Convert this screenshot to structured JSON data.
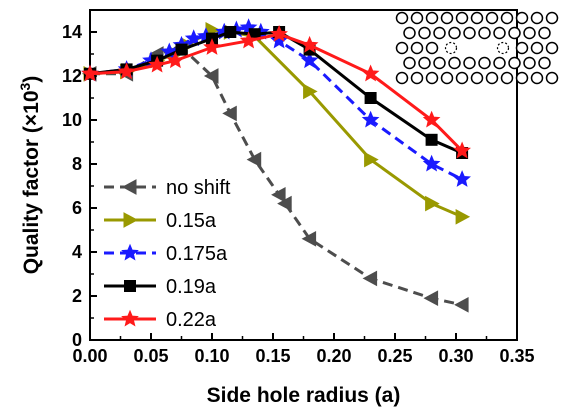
{
  "chart_data": {
    "type": "line",
    "title": "",
    "xlabel": "Side hole radius (a)",
    "ylabel": "Quality factor (×10",
    "ylabel_sup": "3",
    "ylabel_close": ")",
    "xlim": [
      0.0,
      0.35
    ],
    "ylim": [
      0,
      15
    ],
    "x_ticks": [
      0.0,
      0.05,
      0.1,
      0.15,
      0.2,
      0.25,
      0.3,
      0.35
    ],
    "x_tick_labels": [
      "0.00",
      "0.05",
      "0.10",
      "0.15",
      "0.20",
      "0.25",
      "0.30",
      "0.35"
    ],
    "y_ticks": [
      0,
      2,
      4,
      6,
      8,
      10,
      12,
      14
    ],
    "y_tick_labels": [
      "0",
      "2",
      "4",
      "6",
      "8",
      "10",
      "12",
      "14"
    ],
    "legend_position": "lower-left",
    "inset": "photonic crystal hole array with shifted side holes (dotted)",
    "series": [
      {
        "name": "no shift",
        "color": "#4d4d4d",
        "dash": "10,6",
        "marker": "triangle-left",
        "x": [
          0.0,
          0.03,
          0.055,
          0.075,
          0.1,
          0.115,
          0.135,
          0.155,
          0.16,
          0.18,
          0.23,
          0.28,
          0.305
        ],
        "y": [
          12.1,
          12.1,
          13.0,
          13.3,
          12.0,
          10.3,
          8.2,
          6.6,
          6.2,
          4.6,
          2.8,
          1.9,
          1.6
        ]
      },
      {
        "name": "0.15a",
        "color": "#999900",
        "dash": "",
        "marker": "triangle-right",
        "x": [
          0.0,
          0.03,
          0.055,
          0.07,
          0.08,
          0.1,
          0.115,
          0.135,
          0.18,
          0.23,
          0.28,
          0.305
        ],
        "y": [
          12.1,
          12.2,
          12.7,
          13.0,
          13.4,
          14.1,
          14.0,
          13.8,
          11.3,
          8.2,
          6.2,
          5.6
        ]
      },
      {
        "name": "0.175a",
        "color": "#1a1aff",
        "dash": "10,6",
        "marker": "star",
        "x": [
          0.0,
          0.03,
          0.05,
          0.065,
          0.075,
          0.085,
          0.095,
          0.11,
          0.12,
          0.13,
          0.14,
          0.155,
          0.18,
          0.23,
          0.28,
          0.305
        ],
        "y": [
          12.1,
          12.3,
          12.7,
          13.1,
          13.4,
          13.7,
          13.8,
          14.0,
          14.1,
          14.2,
          14.0,
          13.6,
          12.7,
          10.0,
          8.0,
          7.3
        ]
      },
      {
        "name": "0.19a",
        "color": "#000000",
        "dash": "",
        "marker": "square",
        "x": [
          0.0,
          0.03,
          0.055,
          0.075,
          0.1,
          0.115,
          0.135,
          0.155,
          0.18,
          0.23,
          0.28,
          0.305
        ],
        "y": [
          12.1,
          12.3,
          12.7,
          13.2,
          13.7,
          14.0,
          13.9,
          14.0,
          13.2,
          11.0,
          9.1,
          8.5
        ]
      },
      {
        "name": "0.22a",
        "color": "#ff1a1a",
        "dash": "",
        "marker": "star",
        "x": [
          0.0,
          0.03,
          0.055,
          0.07,
          0.1,
          0.13,
          0.155,
          0.18,
          0.23,
          0.28,
          0.305
        ],
        "y": [
          12.1,
          12.2,
          12.5,
          12.7,
          13.3,
          13.6,
          13.9,
          13.4,
          12.1,
          10.0,
          8.6
        ]
      }
    ]
  }
}
